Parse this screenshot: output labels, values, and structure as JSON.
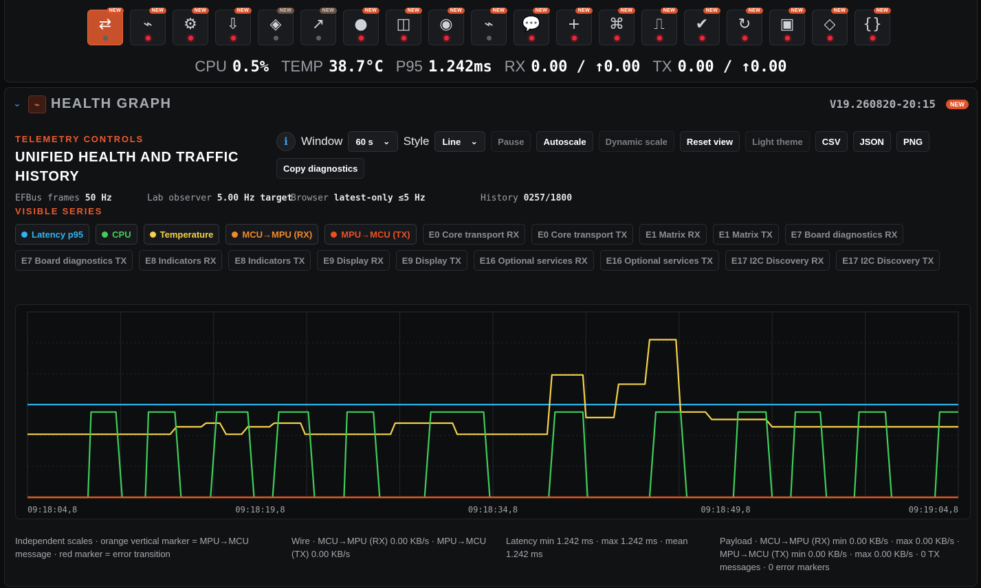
{
  "toolbar": {
    "new_label": "NEW",
    "tools": [
      {
        "icon": "swap-arrows-icon",
        "glyph": "⇄",
        "active": true,
        "status": "grey",
        "tag": "bright"
      },
      {
        "icon": "pulse-icon",
        "glyph": "⌁",
        "status": "red",
        "tag": "bright"
      },
      {
        "icon": "gear-icon",
        "glyph": "⚙",
        "status": "red",
        "tag": "bright"
      },
      {
        "icon": "download-icon",
        "glyph": "⇩",
        "status": "red",
        "tag": "bright"
      },
      {
        "icon": "diamond-layers-icon",
        "glyph": "◈",
        "status": "grey",
        "tag": "dim"
      },
      {
        "icon": "arrow-up-right-icon",
        "glyph": "↗",
        "status": "grey",
        "tag": "dim"
      },
      {
        "icon": "circle-icon",
        "glyph": "●",
        "status": "red",
        "tag": "bright"
      },
      {
        "icon": "split-panel-icon",
        "glyph": "◫",
        "status": "red",
        "tag": "bright"
      },
      {
        "icon": "radio-target-icon",
        "glyph": "◉",
        "status": "red",
        "tag": "bright"
      },
      {
        "icon": "pulse-small-icon",
        "glyph": "⌁",
        "status": "grey",
        "tag": "bright"
      },
      {
        "icon": "chat-bubble-icon",
        "glyph": "💬",
        "status": "red",
        "tag": "bright"
      },
      {
        "icon": "plus-icon",
        "glyph": "+",
        "status": "red",
        "tag": "bright"
      },
      {
        "icon": "command-icon",
        "glyph": "⌘",
        "status": "red",
        "tag": "bright"
      },
      {
        "icon": "square-wave-icon",
        "glyph": "⎍",
        "status": "red",
        "tag": "bright"
      },
      {
        "icon": "checkmark-icon",
        "glyph": "✔",
        "status": "red",
        "tag": "bright"
      },
      {
        "icon": "refresh-icon",
        "glyph": "↻",
        "status": "red",
        "tag": "bright"
      },
      {
        "icon": "square-stop-icon",
        "glyph": "▣",
        "status": "red",
        "tag": "bright"
      },
      {
        "icon": "diamond-outline-icon",
        "glyph": "◇",
        "status": "red",
        "tag": "bright"
      },
      {
        "icon": "braces-icon",
        "glyph": "{}",
        "status": "red",
        "tag": "bright"
      }
    ]
  },
  "stats": [
    {
      "label": "CPU",
      "value": "0.5%"
    },
    {
      "label": "TEMP",
      "value": "38.7°C"
    },
    {
      "label": "P95",
      "value": "1.242ms"
    },
    {
      "label": "RX",
      "value": "0.00 / ↑0.00"
    },
    {
      "label": "TX",
      "value": "0.00 / ↑0.00"
    }
  ],
  "panel": {
    "title": "HEALTH GRAPH",
    "version": "V19.260820-20:15",
    "new_badge": "NEW",
    "section_label": "TELEMETRY CONTROLS",
    "heading": "UNIFIED HEALTH AND TRAFFIC HISTORY",
    "meta": [
      {
        "label": "EFBus frames",
        "value": "50 Hz"
      },
      {
        "label": "Lab observer",
        "value": "5.00 Hz target"
      },
      {
        "label": "Browser",
        "value": "latest-only ≤5 Hz"
      },
      {
        "label": "History",
        "value": "0257/1800"
      }
    ],
    "series_label": "VISIBLE SERIES"
  },
  "controls": {
    "window_label": "Window",
    "window_value": "60 s",
    "style_label": "Style",
    "style_value": "Line",
    "buttons": [
      {
        "label": "Pause",
        "muted": true
      },
      {
        "label": "Autoscale",
        "muted": false
      },
      {
        "label": "Dynamic scale",
        "muted": true
      },
      {
        "label": "Reset view",
        "muted": false
      },
      {
        "label": "Light theme",
        "muted": true
      },
      {
        "label": "CSV",
        "muted": false
      },
      {
        "label": "JSON",
        "muted": false
      },
      {
        "label": "PNG",
        "muted": false
      }
    ],
    "copy_label": "Copy diagnostics"
  },
  "series_chips": [
    {
      "label": "Latency p95",
      "on": true,
      "color": "#2fb3f0"
    },
    {
      "label": "CPU",
      "on": true,
      "color": "#3fcf5a"
    },
    {
      "label": "Temperature",
      "on": true,
      "color": "#f5d24a"
    },
    {
      "label": "MCU→MPU (RX)",
      "on": true,
      "color": "#f08a2a"
    },
    {
      "label": "MPU→MCU (TX)",
      "on": true,
      "color": "#ec4f22"
    },
    {
      "label": "E0 Core transport RX",
      "on": false
    },
    {
      "label": "E0 Core transport TX",
      "on": false
    },
    {
      "label": "E1 Matrix RX",
      "on": false
    },
    {
      "label": "E1 Matrix TX",
      "on": false
    },
    {
      "label": "E7 Board diagnostics RX",
      "on": false
    },
    {
      "label": "E7 Board diagnostics TX",
      "on": false
    },
    {
      "label": "E8 Indicators RX",
      "on": false
    },
    {
      "label": "E8 Indicators TX",
      "on": false
    },
    {
      "label": "E9 Display RX",
      "on": false
    },
    {
      "label": "E9 Display TX",
      "on": false
    },
    {
      "label": "E16 Optional services RX",
      "on": false
    },
    {
      "label": "E16 Optional services TX",
      "on": false
    },
    {
      "label": "E17 I2C Discovery RX",
      "on": false
    },
    {
      "label": "E17 I2C Discovery TX",
      "on": false
    }
  ],
  "chart_data": {
    "type": "line",
    "x_tick_labels": [
      "09:18:04,8",
      "09:18:19,8",
      "09:18:34,8",
      "09:18:49,8",
      "09:19:04,8"
    ],
    "x_range_seconds": [
      0,
      60
    ],
    "grid": true,
    "scales": "independent",
    "series": [
      {
        "name": "Latency p95",
        "color": "#2fb3f0",
        "norm_range": [
          0,
          1
        ],
        "points": [
          [
            0,
            0.5
          ],
          [
            60,
            0.5
          ]
        ]
      },
      {
        "name": "CPU",
        "color": "#3fcf5a",
        "norm_range": [
          0,
          1
        ],
        "points": [
          [
            0,
            0
          ],
          [
            3.9,
            0
          ],
          [
            4.1,
            0.46
          ],
          [
            5.7,
            0.46
          ],
          [
            6.1,
            0
          ],
          [
            7.6,
            0
          ],
          [
            7.8,
            0.46
          ],
          [
            9.5,
            0.46
          ],
          [
            9.9,
            0
          ],
          [
            11.8,
            0
          ],
          [
            12.2,
            0.46
          ],
          [
            14.2,
            0.46
          ],
          [
            14.6,
            0
          ],
          [
            15.8,
            0
          ],
          [
            16.2,
            0.46
          ],
          [
            18.1,
            0.46
          ],
          [
            18.5,
            0
          ],
          [
            20.4,
            0
          ],
          [
            20.6,
            0.46
          ],
          [
            22.3,
            0.46
          ],
          [
            22.7,
            0
          ],
          [
            25.6,
            0
          ],
          [
            26,
            0.46
          ],
          [
            29.4,
            0.46
          ],
          [
            29.8,
            0
          ],
          [
            33.6,
            0
          ],
          [
            34,
            0.46
          ],
          [
            35.8,
            0.46
          ],
          [
            36.1,
            0
          ],
          [
            40.1,
            0
          ],
          [
            40.5,
            0.46
          ],
          [
            42.1,
            0.46
          ],
          [
            42.5,
            0
          ],
          [
            45.5,
            0
          ],
          [
            45.8,
            0.46
          ],
          [
            47.6,
            0.46
          ],
          [
            48,
            0
          ],
          [
            49.2,
            0
          ],
          [
            49.5,
            0.46
          ],
          [
            51.1,
            0.46
          ],
          [
            51.5,
            0
          ],
          [
            53.3,
            0
          ],
          [
            53.6,
            0.46
          ],
          [
            55.3,
            0.46
          ],
          [
            55.7,
            0
          ],
          [
            58.5,
            0
          ],
          [
            58.8,
            0.46
          ],
          [
            60,
            0.46
          ]
        ]
      },
      {
        "name": "Temperature",
        "color": "#f5d24a",
        "norm_range": [
          0,
          1
        ],
        "points": [
          [
            0,
            0.34
          ],
          [
            9.2,
            0.34
          ],
          [
            9.6,
            0.38
          ],
          [
            11.2,
            0.38
          ],
          [
            11.5,
            0.4
          ],
          [
            12.4,
            0.4
          ],
          [
            12.8,
            0.34
          ],
          [
            13.8,
            0.34
          ],
          [
            14.2,
            0.38
          ],
          [
            15.6,
            0.38
          ],
          [
            15.9,
            0.4
          ],
          [
            17.6,
            0.4
          ],
          [
            17.9,
            0.34
          ],
          [
            23.4,
            0.34
          ],
          [
            23.7,
            0.4
          ],
          [
            27.4,
            0.4
          ],
          [
            27.7,
            0.34
          ],
          [
            33.5,
            0.34
          ],
          [
            33.8,
            0.66
          ],
          [
            35.8,
            0.66
          ],
          [
            36,
            0.43
          ],
          [
            37.8,
            0.43
          ],
          [
            38.1,
            0.61
          ],
          [
            39.8,
            0.61
          ],
          [
            40.1,
            0.85
          ],
          [
            41.8,
            0.85
          ],
          [
            42.1,
            0.46
          ],
          [
            43.7,
            0.46
          ],
          [
            44.1,
            0.42
          ],
          [
            47.6,
            0.42
          ],
          [
            48,
            0.38
          ],
          [
            60,
            0.38
          ]
        ]
      },
      {
        "name": "MCU→MPU (RX)",
        "color": "#f08a2a",
        "norm_range": [
          0,
          1
        ],
        "points": [
          [
            0,
            0
          ],
          [
            60,
            0
          ]
        ]
      },
      {
        "name": "MPU→MCU (TX)",
        "color": "#ec4f22",
        "norm_range": [
          0,
          1
        ],
        "points": [
          [
            0,
            0
          ],
          [
            60,
            0
          ]
        ]
      }
    ]
  },
  "footer": [
    "Independent scales · orange vertical marker = MPU→MCU message · red marker = error transition",
    "Wire · MCU→MPU (RX) 0.00 KB/s · MPU→MCU (TX) 0.00 KB/s",
    "Latency min 1.242 ms · max 1.242 ms · mean 1.242 ms",
    "Payload · MCU→MPU (RX) min 0.00 KB/s · max 0.00 KB/s · MPU→MCU (TX) min 0.00 KB/s · max 0.00 KB/s · 0 TX messages · 0 error markers"
  ]
}
